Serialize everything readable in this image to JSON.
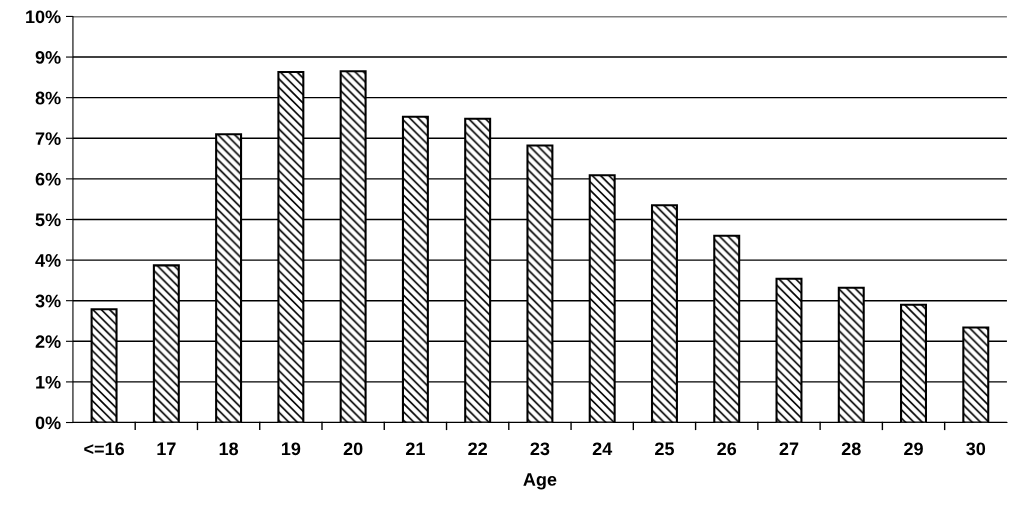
{
  "chart_data": {
    "type": "bar",
    "xlabel": "Age",
    "categories": [
      "<=16",
      "17",
      "18",
      "19",
      "20",
      "21",
      "22",
      "23",
      "24",
      "25",
      "26",
      "27",
      "28",
      "29",
      "30"
    ],
    "values": [
      2.79,
      3.87,
      7.1,
      8.63,
      8.65,
      7.53,
      7.48,
      6.82,
      6.09,
      5.35,
      4.6,
      3.54,
      3.32,
      2.9,
      2.34
    ],
    "color": "#000000",
    "ylim": [
      0,
      10
    ],
    "yticks": [
      {
        "value": 0,
        "label": "0%"
      },
      {
        "value": 1,
        "label": "1%"
      },
      {
        "value": 2,
        "label": "2%"
      },
      {
        "value": 3,
        "label": "3%"
      },
      {
        "value": 4,
        "label": "4%"
      },
      {
        "value": 5,
        "label": "5%"
      },
      {
        "value": 6,
        "label": "6%"
      },
      {
        "value": 7,
        "label": "7%"
      },
      {
        "value": 8,
        "label": "8%"
      },
      {
        "value": 9,
        "label": "9%"
      },
      {
        "value": 10,
        "label": "10%"
      }
    ],
    "grid": "y",
    "legend": false
  }
}
